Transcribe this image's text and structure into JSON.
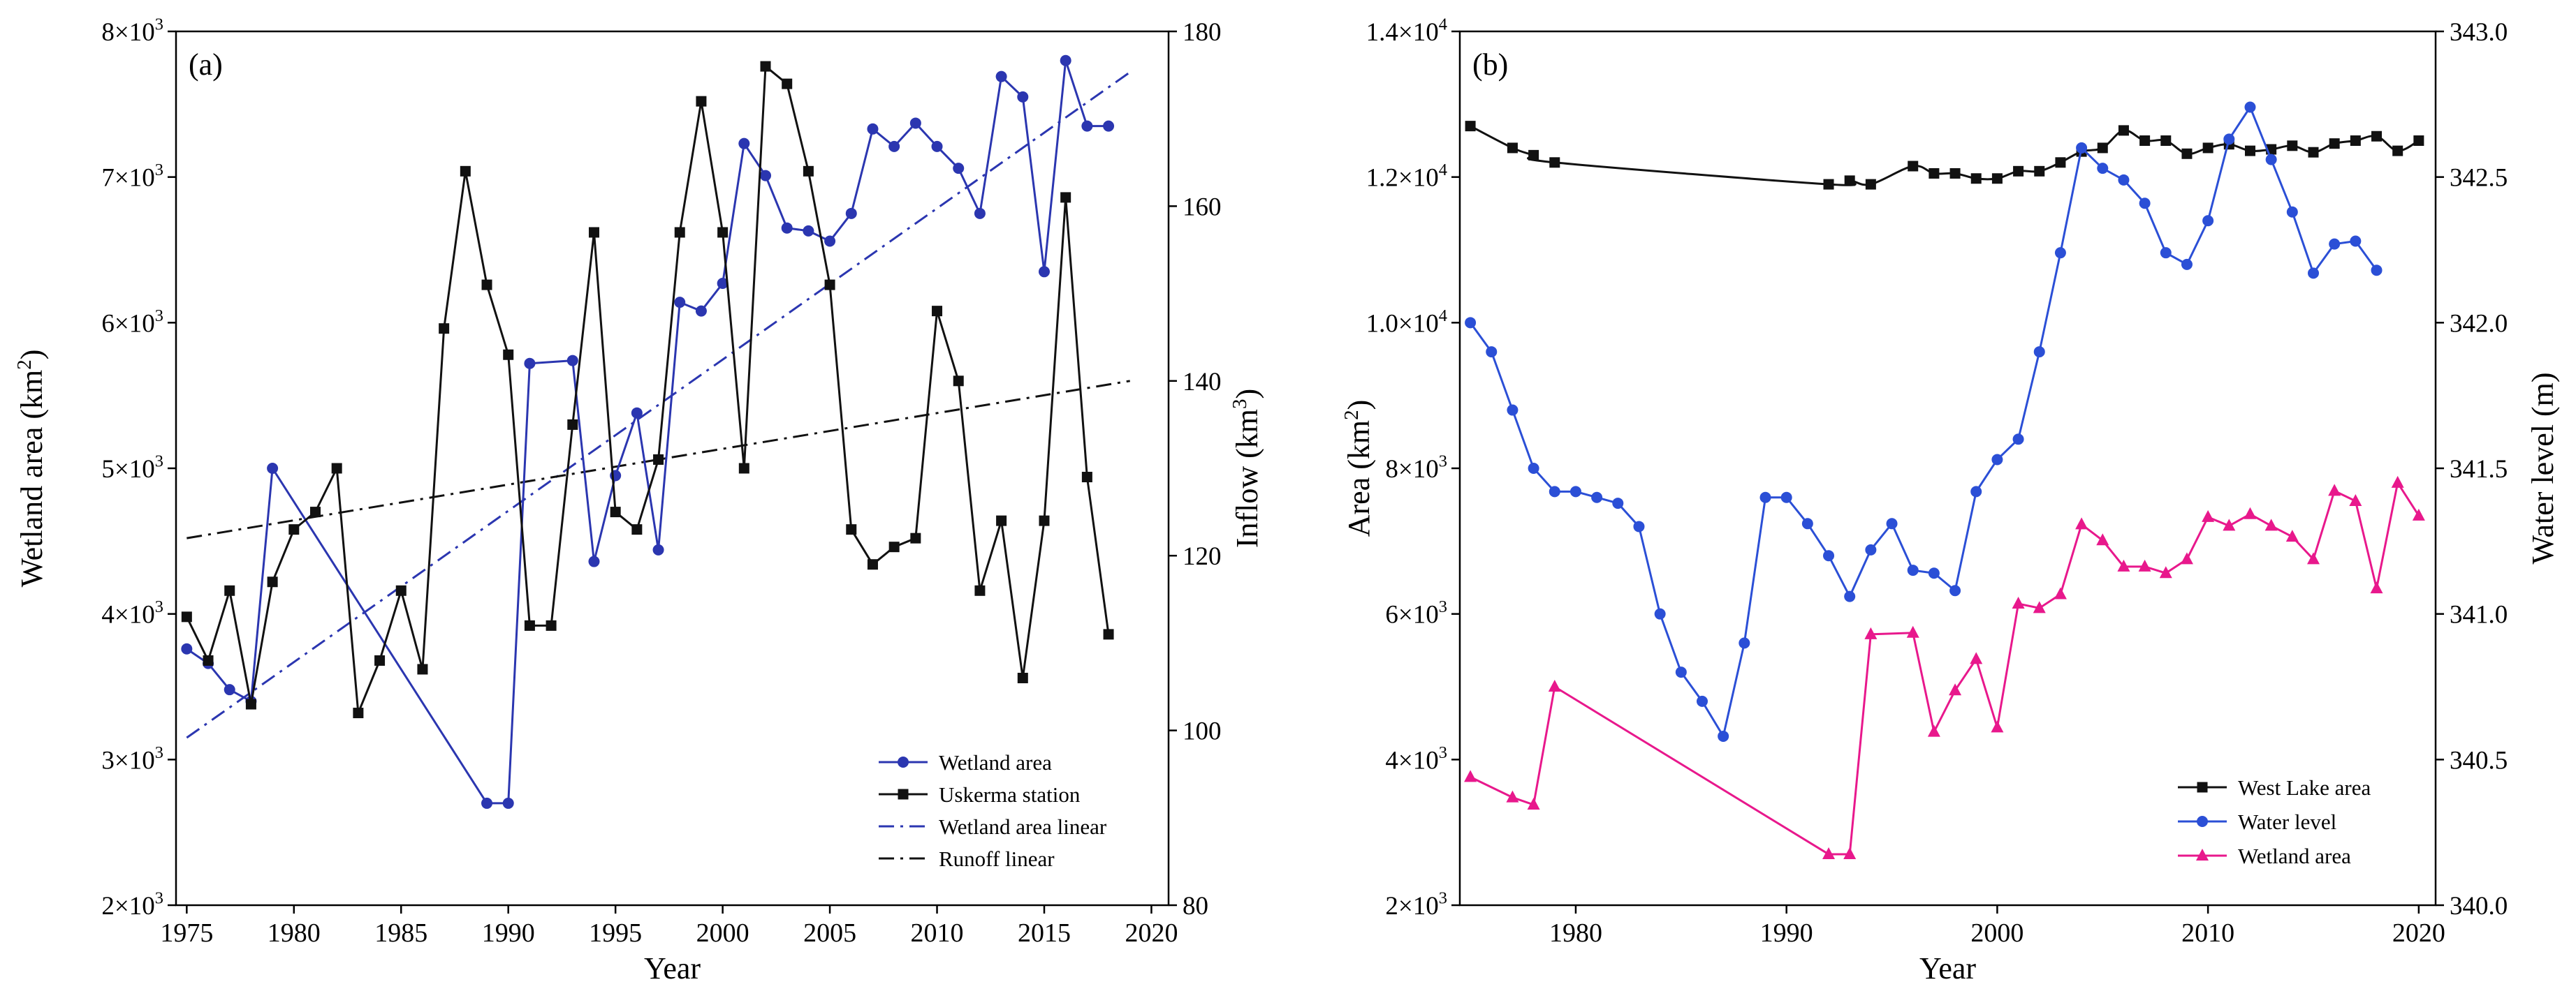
{
  "chart_data": [
    {
      "panel_label": "(a)",
      "type": "line",
      "xlabel": "Year",
      "ylabel_left": "Wetland area",
      "ylabel_left_unit": "(km",
      "ylabel_left_unit_sup": "2",
      "ylabel_left_unit_close": ")",
      "ylabel_right": "Inflow",
      "ylabel_right_unit": "(km",
      "ylabel_right_unit_sup": "3",
      "ylabel_right_unit_close": ")",
      "xlim": [
        1974.5,
        2020.8
      ],
      "ylim_left": [
        2000,
        8000
      ],
      "ylim_right": [
        80,
        180
      ],
      "xticks": [
        1975,
        1980,
        1985,
        1990,
        1995,
        2000,
        2005,
        2010,
        2015,
        2020
      ],
      "yticks_left": [
        {
          "value": 2000,
          "mantissa": "2×10",
          "exp": "3"
        },
        {
          "value": 3000,
          "mantissa": "3×10",
          "exp": "3"
        },
        {
          "value": 4000,
          "mantissa": "4×10",
          "exp": "3"
        },
        {
          "value": 5000,
          "mantissa": "5×10",
          "exp": "3"
        },
        {
          "value": 6000,
          "mantissa": "6×10",
          "exp": "3"
        },
        {
          "value": 7000,
          "mantissa": "7×10",
          "exp": "3"
        },
        {
          "value": 8000,
          "mantissa": "8×10",
          "exp": "3"
        }
      ],
      "yticks_right": [
        80,
        100,
        120,
        140,
        160,
        180
      ],
      "legend_position": "bottom-right",
      "series": [
        {
          "name": "Wetland area",
          "axis": "left",
          "color": "#2b36b0",
          "marker": "circle",
          "x": [
            1975,
            1976,
            1977,
            1978,
            1979,
            1989,
            1990,
            1991,
            1993,
            1994,
            1995,
            1996,
            1997,
            1998,
            1999,
            2000,
            2001,
            2002,
            2003,
            2004,
            2005,
            2006,
            2007,
            2008,
            2009,
            2010,
            2011,
            2012,
            2013,
            2014,
            2015,
            2016,
            2017,
            2018
          ],
          "y": [
            3760,
            3660,
            3480,
            3400,
            5000,
            2700,
            2700,
            5720,
            5740,
            4360,
            4950,
            5380,
            4440,
            6140,
            6080,
            6270,
            7230,
            7010,
            6650,
            6630,
            6560,
            6750,
            7330,
            7210,
            7370,
            7210,
            7060,
            6750,
            7690,
            7550,
            6350,
            7800,
            7350,
            7350
          ]
        },
        {
          "name": "Uskerma station",
          "axis": "right",
          "color": "#111111",
          "marker": "square",
          "x": [
            1975,
            1976,
            1977,
            1978,
            1979,
            1980,
            1981,
            1982,
            1983,
            1984,
            1985,
            1986,
            1987,
            1988,
            1989,
            1990,
            1991,
            1992,
            1993,
            1994,
            1995,
            1996,
            1997,
            1998,
            1999,
            2000,
            2001,
            2002,
            2003,
            2004,
            2005,
            2006,
            2007,
            2008,
            2009,
            2010,
            2011,
            2012,
            2013,
            2014,
            2015,
            2016,
            2017,
            2018
          ],
          "y": [
            113,
            108,
            116,
            103,
            117,
            123,
            125,
            130,
            102,
            108,
            116,
            107,
            146,
            164,
            151,
            143,
            112,
            112,
            135,
            157,
            125,
            123,
            131,
            157,
            172,
            157,
            130,
            176,
            174,
            164,
            151,
            123,
            119,
            121,
            122,
            148,
            140,
            116,
            124,
            106,
            124,
            161,
            129,
            111
          ]
        }
      ],
      "trend_lines": [
        {
          "name": "Wetland area linear",
          "axis": "left",
          "color": "#2b36b0",
          "x": [
            1975,
            2019
          ],
          "y": [
            3150,
            7720
          ]
        },
        {
          "name": "Runoff linear",
          "axis": "right",
          "color": "#111111",
          "x": [
            1975,
            2019
          ],
          "y": [
            122,
            140
          ]
        }
      ],
      "legend": [
        "Wetland area",
        "Uskerma station",
        "Wetland area linear",
        "Runoff linear"
      ]
    },
    {
      "panel_label": "(b)",
      "type": "line",
      "xlabel": "Year",
      "ylabel_left": "Area",
      "ylabel_left_unit": "(km",
      "ylabel_left_unit_sup": "2",
      "ylabel_left_unit_close": ")",
      "ylabel_right": "Water level",
      "ylabel_right_unit": "(m)",
      "xlim": [
        1974.5,
        2020.8
      ],
      "ylim_left": [
        2000,
        14000
      ],
      "ylim_right": [
        340.0,
        343.0
      ],
      "xticks": [
        1980,
        1990,
        2000,
        2010,
        2020
      ],
      "yticks_left": [
        {
          "value": 2000,
          "mantissa": "2×10",
          "exp": "3"
        },
        {
          "value": 4000,
          "mantissa": "4×10",
          "exp": "3"
        },
        {
          "value": 6000,
          "mantissa": "6×10",
          "exp": "3"
        },
        {
          "value": 8000,
          "mantissa": "8×10",
          "exp": "3"
        },
        {
          "value": 10000,
          "mantissa": "1.0×10",
          "exp": "4"
        },
        {
          "value": 12000,
          "mantissa": "1.2×10",
          "exp": "4"
        },
        {
          "value": 14000,
          "mantissa": "1.4×10",
          "exp": "4"
        }
      ],
      "yticks_right": [
        "340.0",
        "340.5",
        "341.0",
        "341.5",
        "342.0",
        "342.5",
        "343.0"
      ],
      "legend_position": "bottom-right",
      "series": [
        {
          "name": "West Lake area",
          "axis": "left",
          "color": "#111111",
          "marker": "square",
          "smooth": true,
          "x": [
            1975,
            1977,
            1978,
            1979,
            1992,
            1993,
            1994,
            1996,
            1997,
            1998,
            1999,
            2000,
            2001,
            2002,
            2003,
            2004,
            2005,
            2006,
            2007,
            2008,
            2009,
            2010,
            2011,
            2012,
            2013,
            2014,
            2015,
            2016,
            2017,
            2018,
            2019,
            2020
          ],
          "y": [
            12700,
            12400,
            12300,
            12200,
            11900,
            11950,
            11900,
            12150,
            12050,
            12050,
            11980,
            11980,
            12080,
            12080,
            12200,
            12350,
            12400,
            12640,
            12500,
            12500,
            12320,
            12400,
            12450,
            12360,
            12380,
            12430,
            12340,
            12460,
            12500,
            12560,
            12360,
            12500
          ]
        },
        {
          "name": "Water level",
          "axis": "right",
          "color": "#2b4fd6",
          "marker": "circle",
          "x": [
            1975,
            1976,
            1977,
            1978,
            1979,
            1980,
            1981,
            1982,
            1983,
            1984,
            1985,
            1986,
            1987,
            1988,
            1989,
            1990,
            1991,
            1992,
            1993,
            1994,
            1995,
            1996,
            1997,
            1998,
            1999,
            2000,
            2001,
            2002,
            2003,
            2004,
            2005,
            2006,
            2007,
            2008,
            2009,
            2010,
            2011,
            2012,
            2013,
            2014,
            2015,
            2016,
            2017,
            2018
          ],
          "y": [
            342.0,
            341.9,
            341.7,
            341.5,
            341.42,
            341.42,
            341.4,
            341.38,
            341.3,
            341.0,
            340.8,
            340.7,
            340.58,
            340.9,
            341.4,
            341.4,
            341.31,
            341.2,
            341.06,
            341.22,
            341.31,
            341.15,
            341.14,
            341.08,
            341.42,
            341.53,
            341.6,
            341.9,
            342.24,
            342.6,
            342.53,
            342.49,
            342.41,
            342.24,
            342.2,
            342.35,
            342.63,
            342.74,
            342.56,
            342.38,
            342.17,
            342.27,
            342.28,
            342.18
          ]
        },
        {
          "name": "Wetland area",
          "axis": "left",
          "color": "#e8188c",
          "marker": "triangle",
          "x": [
            1975,
            1977,
            1978,
            1979,
            1992,
            1993,
            1994,
            1996,
            1997,
            1998,
            1999,
            2000,
            2001,
            2002,
            2003,
            2004,
            2005,
            2006,
            2007,
            2008,
            2009,
            2010,
            2011,
            2012,
            2013,
            2014,
            2015,
            2016,
            2017,
            2018,
            2019,
            2020
          ],
          "y": [
            3760,
            3480,
            3380,
            5000,
            2700,
            2700,
            5720,
            5740,
            4380,
            4950,
            5380,
            4440,
            6140,
            6080,
            6270,
            7230,
            7010,
            6650,
            6650,
            6560,
            6750,
            7330,
            7210,
            7370,
            7210,
            7060,
            6750,
            7690,
            7550,
            6350,
            7800,
            7350
          ]
        }
      ],
      "legend": [
        "West Lake area",
        "Water level",
        "Wetland area"
      ]
    }
  ]
}
